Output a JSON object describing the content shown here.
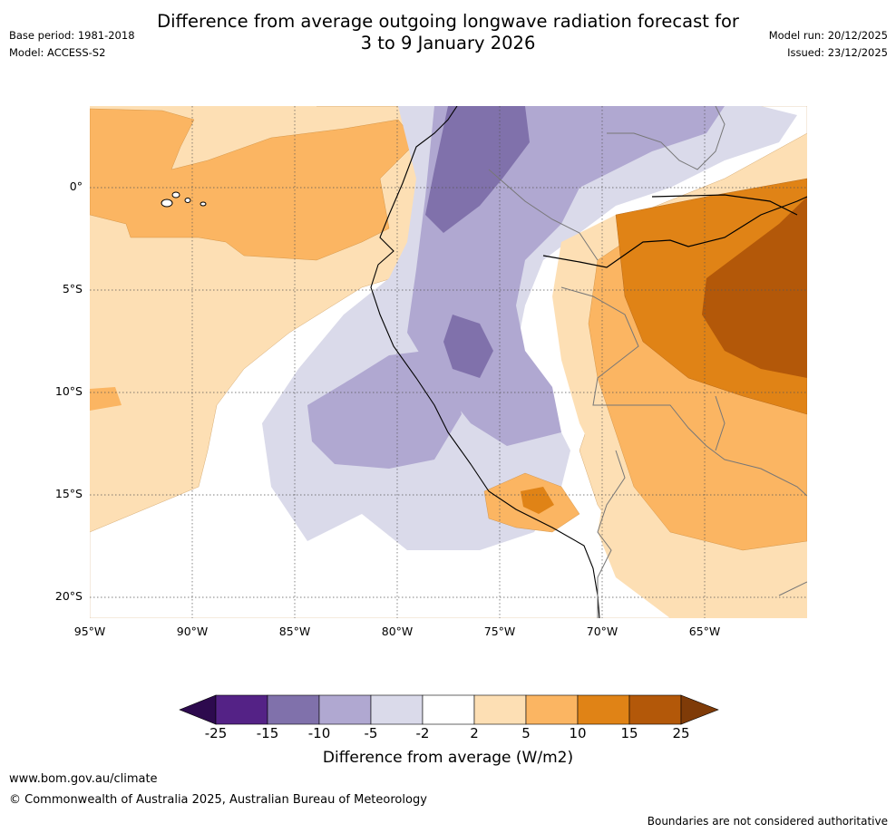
{
  "header": {
    "title": "Difference from average outgoing longwave radiation forecast for\n3 to 9 January 2026",
    "base_period": "Base period: 1981-2018",
    "model": "Model: ACCESS-S2",
    "model_run": "Model run: 20/12/2025",
    "issued": "Issued: 23/12/2025"
  },
  "map": {
    "region": "Tropical South-east Pacific and north-western South America",
    "lat_labels": [
      "0°",
      "5°S",
      "10°S",
      "15°S",
      "20°S"
    ],
    "lon_labels": [
      "95°W",
      "90°W",
      "85°W",
      "80°W",
      "75°W",
      "70°W",
      "65°W"
    ],
    "lat_range": [
      -21,
      4
    ],
    "lon_range": [
      -95,
      -60
    ]
  },
  "colorbar": {
    "title": "Difference from average (W/m2)",
    "ticks": [
      "-25",
      "-15",
      "-10",
      "-5",
      "-2",
      "2",
      "5",
      "10",
      "15",
      "25"
    ],
    "colors": {
      "below_-25": "#2d0a4e",
      "-25_-15": "#542286",
      "-15_-10": "#8071ab",
      "-10_-5": "#b0a8d1",
      "-5_-2": "#dadaea",
      "-2_2": "#ffffff",
      "2_5": "#fddfb4",
      "5_10": "#fbb562",
      "10_15": "#e08316",
      "15_25": "#b35809",
      "above_25": "#7f3b08"
    }
  },
  "footer": {
    "website": "www.bom.gov.au/climate",
    "copyright": "© Commonwealth of Australia 2025, Australian Bureau of Meteorology",
    "disclaimer": "Boundaries are not considered authoritative"
  }
}
